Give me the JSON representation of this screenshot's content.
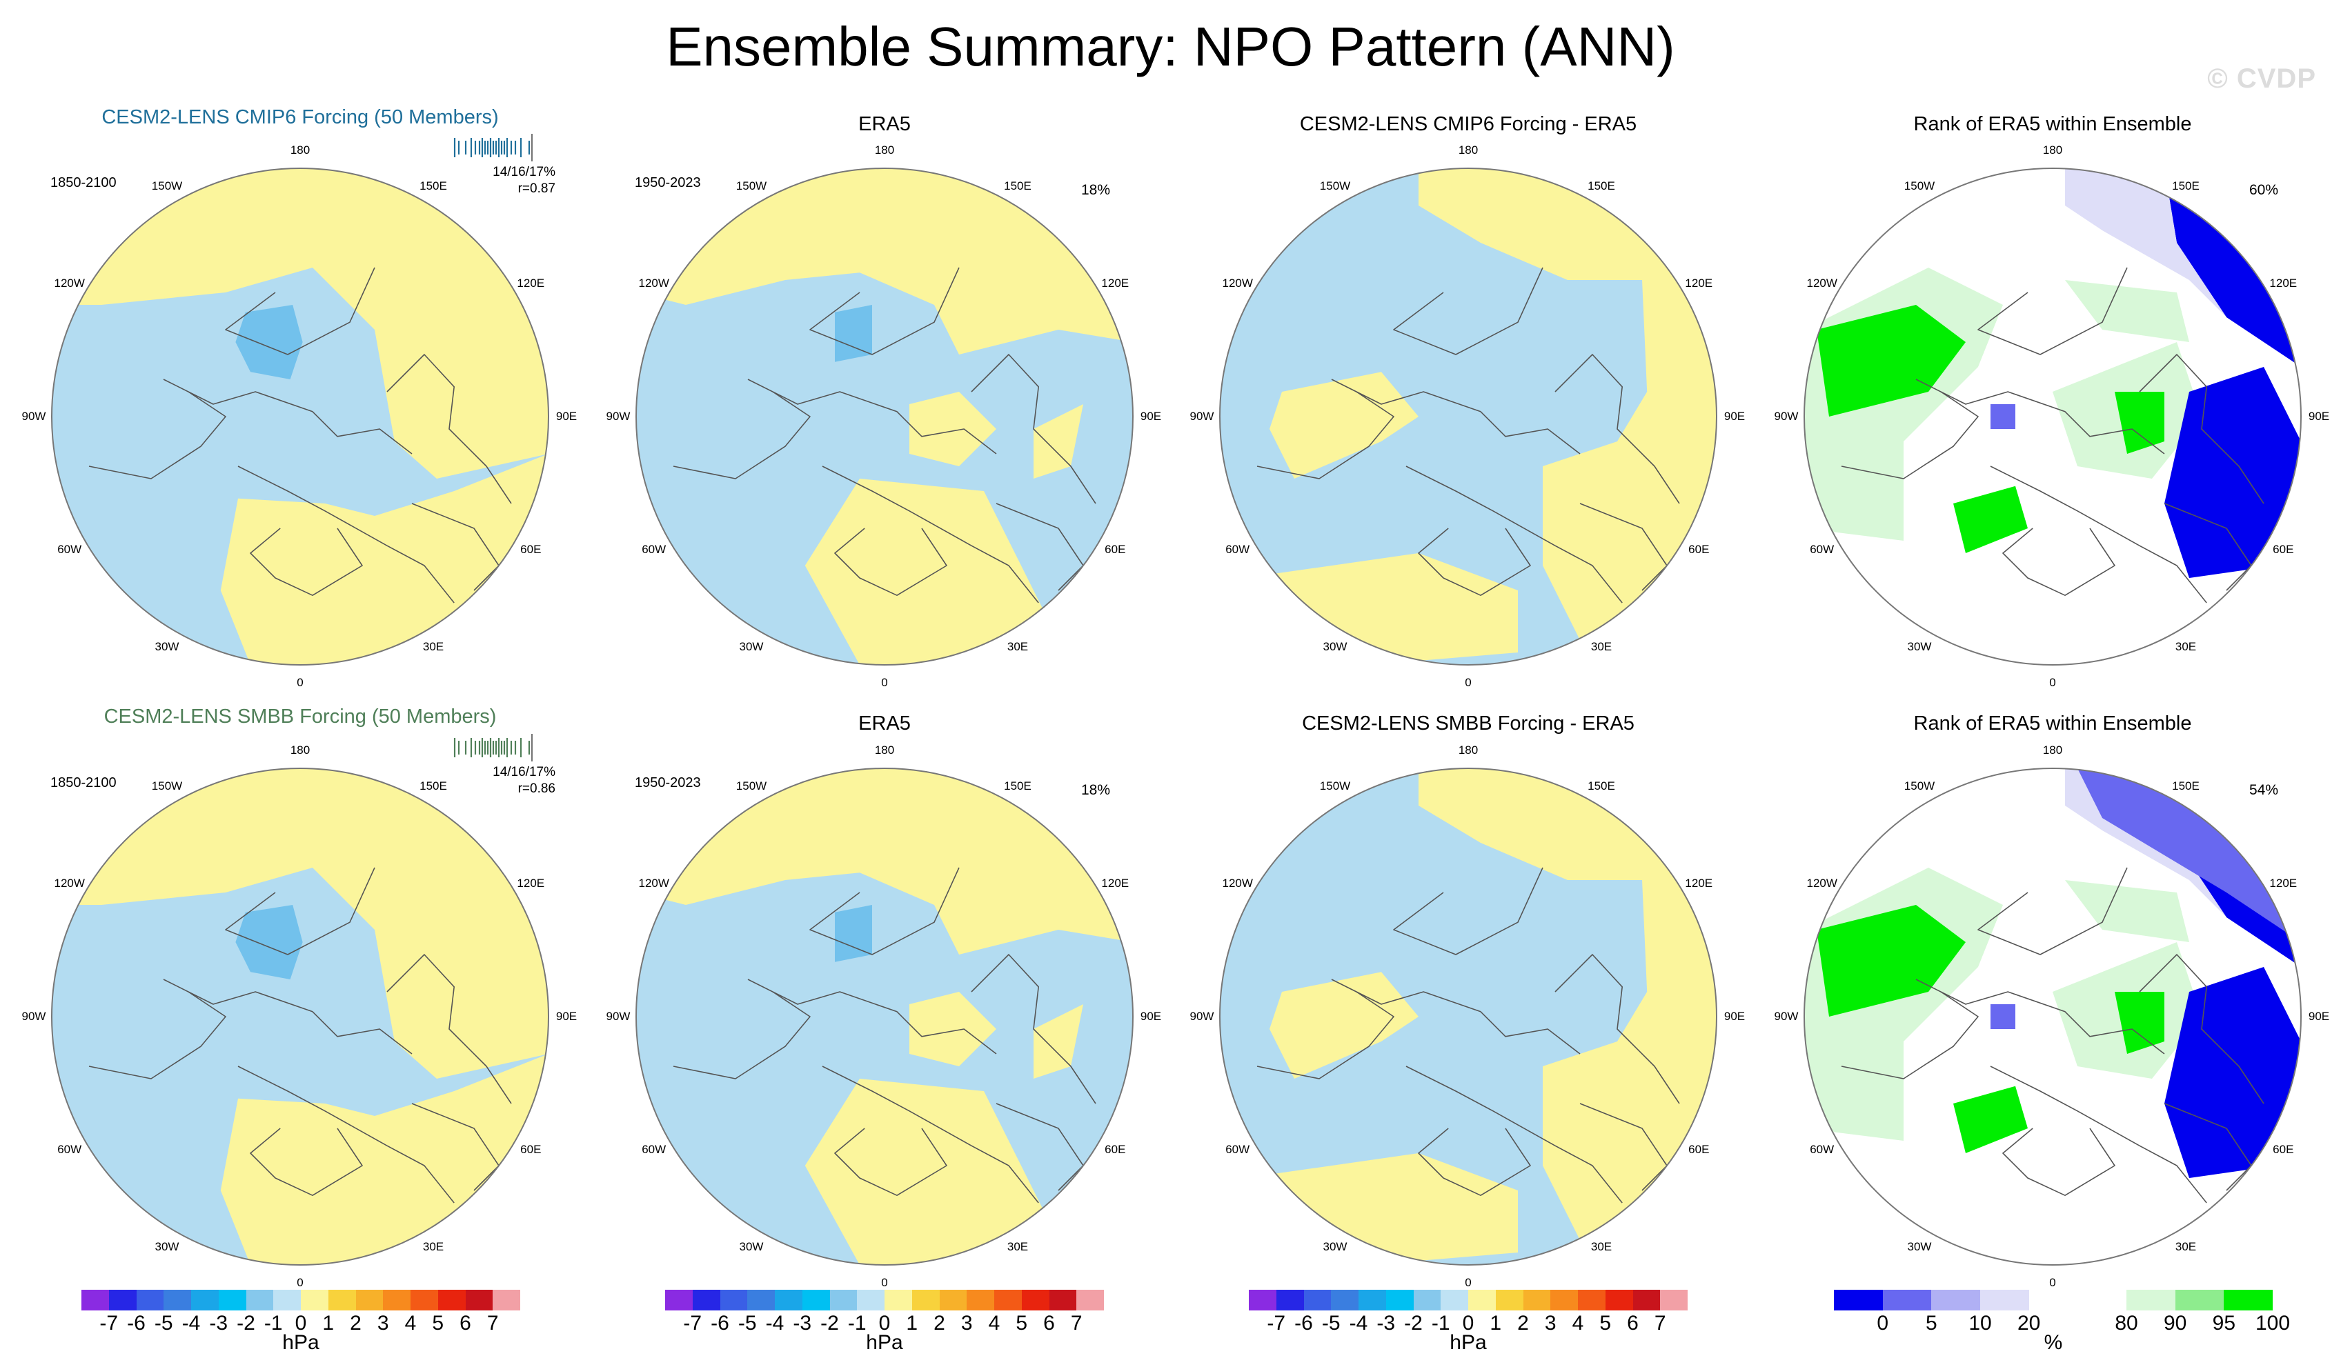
{
  "title": "Ensemble Summary: NPO Pattern (ANN)",
  "watermark": "© CVDP",
  "colors": {
    "negative": "#b3dcf1",
    "positive": "#fbf59c",
    "neg_strong": "#72c1ec",
    "rank_dark_blue": "#0000ee",
    "rank_mid_blue": "#6868f0",
    "rank_light_blue": "#dedef8",
    "rank_white": "#ffffff",
    "rank_light_green": "#d8f8d8",
    "rank_mid_green": "#8eec8e",
    "rank_green": "#00ee00",
    "coast": "#555555",
    "map_border": "#777777",
    "title_cmip6": "#1f6f9a",
    "title_smbb": "#4f7f58"
  },
  "longitude_labels": [
    "180",
    "150E",
    "120E",
    "90E",
    "60E",
    "30E",
    "0",
    "30W",
    "60W",
    "90W",
    "120W",
    "150W"
  ],
  "rows": [
    {
      "model_panel": {
        "title": "CESM2-LENS CMIP6 Forcing (50 Members)",
        "period": "1850-2100",
        "stats": "14/16/17%",
        "corr": "r=0.87",
        "icon": "ensemble-rug-icon"
      },
      "obs_panel": {
        "title": "ERA5",
        "period": "1950-2023",
        "pct": "18%"
      },
      "diff_panel": {
        "title": "CESM2-LENS CMIP6 Forcing - ERA5"
      },
      "rank_panel": {
        "title": "Rank of ERA5 within Ensemble",
        "pct": "60%"
      }
    },
    {
      "model_panel": {
        "title": "CESM2-LENS SMBB Forcing (50 Members)",
        "period": "1850-2100",
        "stats": "14/16/17%",
        "corr": "r=0.86",
        "icon": "ensemble-rug-icon"
      },
      "obs_panel": {
        "title": "ERA5",
        "period": "1950-2023",
        "pct": "18%"
      },
      "diff_panel": {
        "title": "CESM2-LENS SMBB Forcing - ERA5"
      },
      "rank_panel": {
        "title": "Rank of ERA5 within Ensemble",
        "pct": "54%"
      }
    }
  ],
  "colorbar_hpa": {
    "colors": [
      "#8a2be2",
      "#2626e6",
      "#3a5fe6",
      "#3a7ee0",
      "#1aa6e8",
      "#00c0f2",
      "#86c8ec",
      "#bfe2f4",
      "#fbf59c",
      "#f8d23c",
      "#f7b12a",
      "#f78a1e",
      "#f35a16",
      "#e8240e",
      "#c8141c",
      "#f2a0a6"
    ],
    "labels": [
      "-7",
      "-6",
      "-5",
      "-4",
      "-3",
      "-2",
      "-1",
      "0",
      "1",
      "2",
      "3",
      "4",
      "5",
      "6",
      "7"
    ],
    "unit": "hPa"
  },
  "colorbar_rank": {
    "colors": [
      "#0000ee",
      "#6868f0",
      "#b0b0f4",
      "#dedef8",
      "#ffffff",
      "#ffffff",
      "#d8f8d8",
      "#8eec8e",
      "#00ee00"
    ],
    "labels": [
      "0",
      "5",
      "10",
      "20",
      "80",
      "90",
      "95",
      "100"
    ],
    "unit": "%"
  }
}
